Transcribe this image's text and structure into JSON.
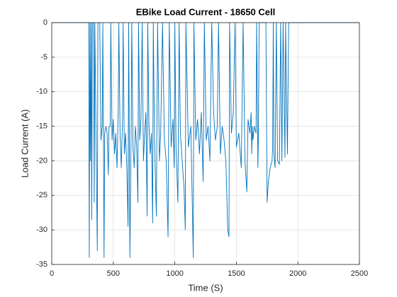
{
  "chart_data": {
    "type": "line",
    "title": "EBike Load Current - 18650 Cell",
    "x_label": "Time (S)",
    "y_label": "Load Current (A)",
    "color": "#0072bd",
    "grid": true,
    "xlim": [
      0,
      2500
    ],
    "xticks": [
      0,
      500,
      1000,
      1500,
      2000,
      2500
    ],
    "ylim": [
      -35,
      0
    ],
    "yticks": [
      -35,
      -30,
      -25,
      -20,
      -15,
      -10,
      -5,
      0
    ],
    "x": [
      0,
      300,
      305,
      310,
      315,
      320,
      325,
      330,
      340,
      345,
      350,
      370,
      375,
      390,
      400,
      410,
      415,
      425,
      430,
      440,
      450,
      460,
      465,
      475,
      480,
      490,
      500,
      510,
      520,
      530,
      540,
      545,
      555,
      565,
      575,
      580,
      590,
      600,
      610,
      620,
      625,
      635,
      645,
      650,
      660,
      670,
      680,
      690,
      700,
      705,
      715,
      725,
      735,
      745,
      755,
      765,
      775,
      780,
      790,
      800,
      810,
      820,
      825,
      835,
      850,
      860,
      875,
      885,
      900,
      915,
      930,
      945,
      955,
      970,
      985,
      995,
      1000,
      1010,
      1025,
      1035,
      1045,
      1060,
      1075,
      1085,
      1090,
      1110,
      1130,
      1150,
      1155,
      1170,
      1185,
      1200,
      1215,
      1230,
      1240,
      1255,
      1270,
      1285,
      1300,
      1315,
      1330,
      1345,
      1355,
      1370,
      1385,
      1400,
      1415,
      1430,
      1440,
      1445,
      1460,
      1475,
      1490,
      1500,
      1520,
      1540,
      1555,
      1570,
      1585,
      1595,
      1610,
      1620,
      1625,
      1630,
      1635,
      1645,
      1660,
      1665,
      1675,
      1680,
      1685,
      1740,
      1750,
      1760,
      1775,
      1790,
      1795,
      1800,
      1805,
      1815,
      1825,
      1835,
      1850,
      1860,
      1870,
      1880,
      1895,
      1900,
      1915,
      1925,
      2500
    ],
    "values": [
      0,
      0,
      -34,
      0,
      -20,
      0,
      -28.5,
      0,
      0,
      -26,
      0,
      -33,
      0,
      0,
      -17,
      -15,
      0,
      -34,
      -16,
      -15,
      -16,
      -22,
      -15,
      -15,
      0,
      -17,
      -14,
      -19,
      -16,
      -21,
      -13,
      0,
      -16,
      -21,
      -14,
      0,
      -19,
      -16,
      -21,
      -29.5,
      0,
      -34,
      -16,
      0,
      -18,
      -21,
      -15,
      -18,
      -26,
      0,
      -17,
      -14,
      0,
      -20,
      -16,
      -13,
      -28,
      0,
      -15,
      -19,
      -16,
      -29,
      0,
      -17,
      -28,
      0,
      -20,
      -16,
      0,
      -17,
      -20,
      -31,
      0,
      -18,
      -14,
      -21,
      0,
      -18,
      -26,
      0,
      -16,
      -20,
      -24,
      -30,
      0,
      -18,
      -15,
      -34,
      0,
      -17,
      -14,
      -19,
      -13,
      -23,
      0,
      -17,
      -15,
      -20,
      0,
      -13,
      -17,
      -15,
      0,
      -19,
      -15,
      -17,
      -20,
      -30,
      -31,
      0,
      -16,
      -13,
      0,
      -18,
      -16,
      -21,
      0,
      -20,
      -24.5,
      -14,
      -16,
      -13,
      -19,
      -15,
      -17,
      -15,
      -16,
      0,
      -21,
      -15,
      0,
      0,
      -26,
      -23,
      -21,
      -20,
      -18,
      0,
      -19,
      -21,
      0,
      -20,
      -20.5,
      0,
      -20,
      0,
      -19.5,
      0,
      -19,
      0,
      0
    ]
  }
}
